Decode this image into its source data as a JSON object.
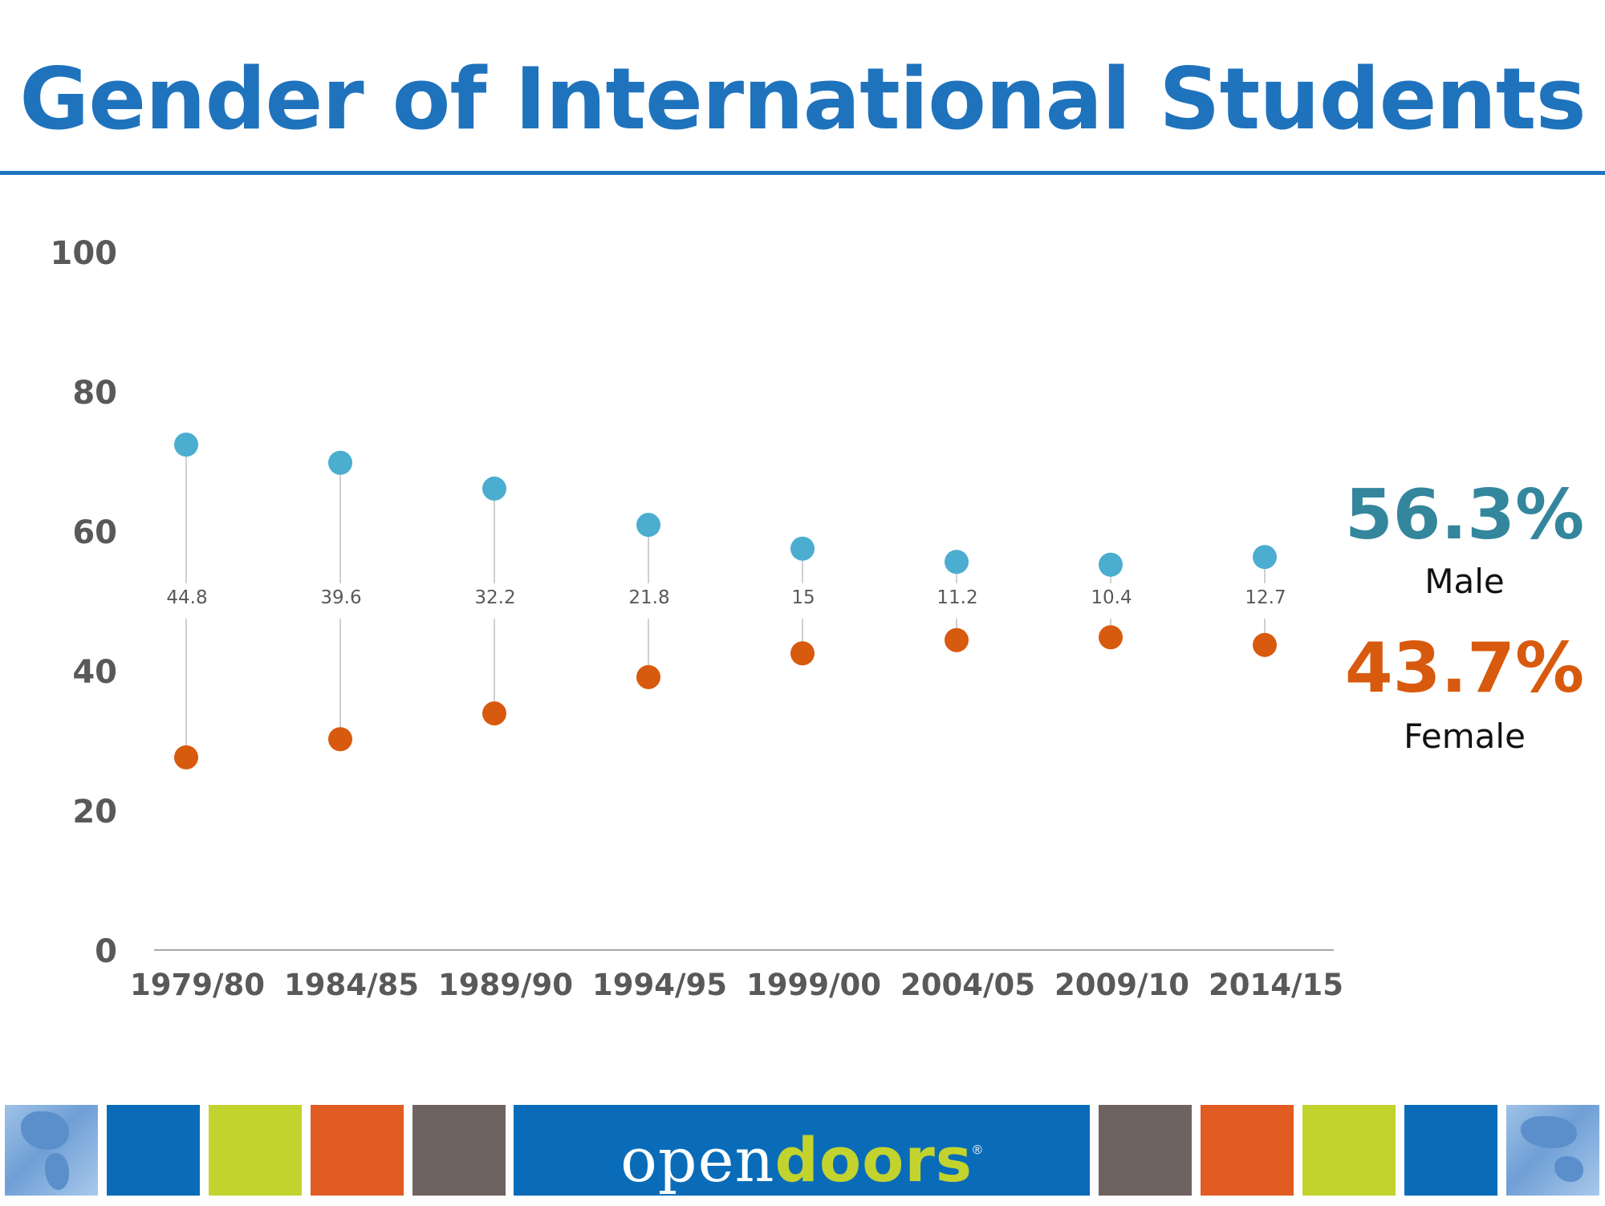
{
  "title": "Gender of International Students",
  "summary": {
    "male_value": "56.3%",
    "male_label": "Male",
    "female_value": "43.7%",
    "female_label": "Female"
  },
  "footer": {
    "brand_open": "open",
    "brand_doors": "doors",
    "brand_mark": "®"
  },
  "colors": {
    "title": "#1f73bd",
    "male": "#4badcf",
    "female": "#d85a0e",
    "male_text": "#34869c",
    "female_text": "#d85a0e",
    "connector": "#d0d0d0",
    "axis_text": "#595959",
    "tiles": [
      "#0a6cb8",
      "#c3d32e",
      "#e05c22",
      "#6e6360"
    ]
  },
  "chart_data": {
    "type": "scatter",
    "title": "Gender of International Students",
    "xlabel": "",
    "ylabel": "",
    "ylim": [
      0,
      100
    ],
    "yticks": [
      0,
      20,
      40,
      60,
      80,
      100
    ],
    "categories": [
      "1979/80",
      "1984/85",
      "1989/90",
      "1994/95",
      "1999/00",
      "2004/05",
      "2009/10",
      "2014/15"
    ],
    "series": [
      {
        "key": "male",
        "values": [
          72.4,
          69.8,
          66.1,
          60.9,
          57.5,
          55.6,
          55.2,
          56.3
        ]
      },
      {
        "key": "female",
        "values": [
          27.6,
          30.2,
          33.9,
          39.1,
          42.5,
          44.4,
          44.8,
          43.7
        ]
      }
    ],
    "gap_labels": [
      "44.8",
      "39.6",
      "32.2",
      "21.8",
      "15",
      "11.2",
      "10.4",
      "12.7"
    ],
    "grid": false
  }
}
